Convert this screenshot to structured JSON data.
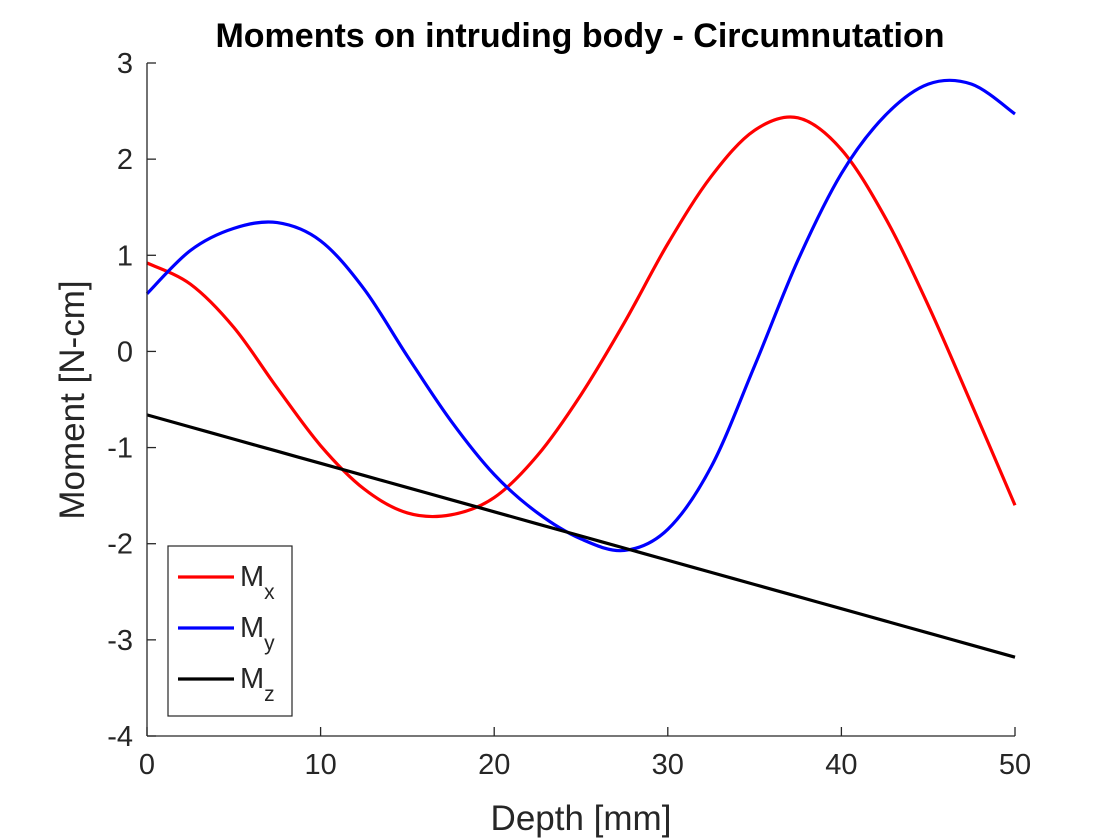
{
  "chart_data": {
    "type": "line",
    "title": "Moments on intruding body - Circumnutation",
    "xlabel": "Depth [mm]",
    "ylabel": "Moment [N-cm]",
    "xlim": [
      0,
      50
    ],
    "ylim": [
      -4,
      3
    ],
    "xticks": [
      0,
      10,
      20,
      30,
      40,
      50
    ],
    "yticks": [
      -4,
      -3,
      -2,
      -1,
      0,
      1,
      2,
      3
    ],
    "xtick_labels": [
      "0",
      "10",
      "20",
      "30",
      "40",
      "50"
    ],
    "ytick_labels": [
      "-4",
      "-3",
      "-2",
      "-1",
      "0",
      "1",
      "2",
      "3"
    ],
    "grid": false,
    "legend_position": "bottom-left",
    "x": [
      0,
      2.5,
      5,
      7.5,
      10,
      12.5,
      15,
      17.5,
      20,
      22.5,
      25,
      27.5,
      30,
      32.5,
      35,
      37.5,
      40,
      42.5,
      45,
      47.5,
      50
    ],
    "series": [
      {
        "name": "Mx",
        "legend_main": "M",
        "legend_sub": "x",
        "color": "#ff0000",
        "values": [
          0.92,
          0.7,
          0.25,
          -0.38,
          -0.98,
          -1.43,
          -1.68,
          -1.7,
          -1.52,
          -1.08,
          -0.45,
          0.3,
          1.12,
          1.82,
          2.3,
          2.43,
          2.1,
          1.4,
          0.48,
          -0.55,
          -1.6
        ]
      },
      {
        "name": "My",
        "legend_main": "M",
        "legend_sub": "y",
        "color": "#0000ff",
        "values": [
          0.6,
          1.05,
          1.28,
          1.34,
          1.15,
          0.65,
          -0.05,
          -0.72,
          -1.28,
          -1.68,
          -1.95,
          -2.07,
          -1.85,
          -1.2,
          -0.15,
          0.95,
          1.85,
          2.45,
          2.78,
          2.78,
          2.47
        ]
      },
      {
        "name": "Mz",
        "legend_main": "M",
        "legend_sub": "z",
        "color": "#000000",
        "values": [
          -0.66,
          -0.786,
          -0.912,
          -1.038,
          -1.164,
          -1.29,
          -1.416,
          -1.542,
          -1.668,
          -1.794,
          -1.92,
          -2.046,
          -2.172,
          -2.298,
          -2.424,
          -2.55,
          -2.676,
          -2.802,
          -2.928,
          -3.054,
          -3.18
        ]
      }
    ]
  }
}
